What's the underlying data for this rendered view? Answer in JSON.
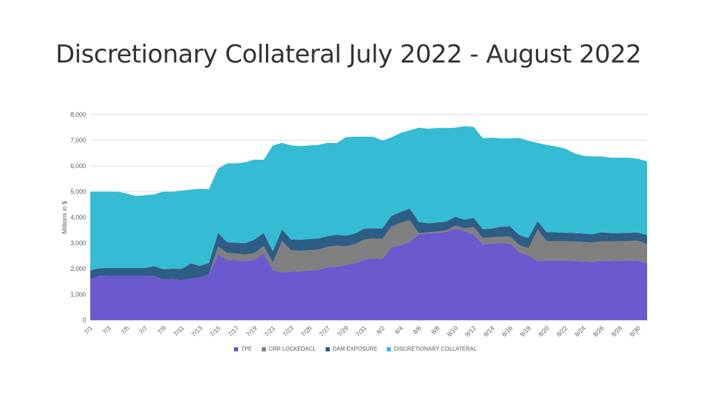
{
  "slide": {
    "title": "Discretionary Collateral July 2022 - August 2022"
  },
  "chart_data": {
    "type": "area",
    "stacked": true,
    "ylabel": "Millions in $",
    "xlabel": "",
    "ylim": [
      0,
      8000
    ],
    "yticks": [
      "0",
      "1,000",
      "2,000",
      "3,000",
      "4,000",
      "5,000",
      "6,000",
      "7,000",
      "8,000"
    ],
    "grid": true,
    "legend_position": "bottom",
    "x": [
      "7/1",
      "7/2",
      "7/3",
      "7/4",
      "7/5",
      "7/6",
      "7/7",
      "7/8",
      "7/9",
      "7/10",
      "7/11",
      "7/12",
      "7/13",
      "7/14",
      "7/15",
      "7/16",
      "7/17",
      "7/18",
      "7/19",
      "7/20",
      "7/21",
      "7/22",
      "7/23",
      "7/24",
      "7/25",
      "7/26",
      "7/27",
      "7/28",
      "7/29",
      "7/30",
      "7/31",
      "8/1",
      "8/2",
      "8/3",
      "8/4",
      "8/5",
      "8/6",
      "8/7",
      "8/8",
      "8/9",
      "8/10",
      "8/11",
      "8/12",
      "8/13",
      "8/14",
      "8/15",
      "8/16",
      "8/17",
      "8/18",
      "8/19",
      "8/20",
      "8/21",
      "8/22",
      "8/23",
      "8/24",
      "8/25",
      "8/26",
      "8/27",
      "8/28",
      "8/29",
      "8/30",
      "8/31"
    ],
    "xtick_labels": [
      "7/1",
      "",
      "7/3",
      "",
      "7/5",
      "",
      "7/7",
      "",
      "7/9",
      "",
      "7/11",
      "",
      "7/13",
      "",
      "7/15",
      "",
      "7/17",
      "",
      "7/19",
      "",
      "7/21",
      "",
      "7/23",
      "",
      "7/25",
      "",
      "7/27",
      "",
      "7/29",
      "",
      "7/31",
      "",
      "8/2",
      "",
      "8/4",
      "",
      "8/6",
      "",
      "8/8",
      "",
      "8/10",
      "",
      "8/12",
      "",
      "8/14",
      "",
      "8/16",
      "",
      "8/18",
      "",
      "8/20",
      "",
      "8/22",
      "",
      "8/24",
      "",
      "8/26",
      "",
      "8/28",
      "",
      "8/30",
      ""
    ],
    "series": [
      {
        "name": "TPE",
        "color": "#6a5acd",
        "values": [
          1600,
          1720,
          1730,
          1730,
          1730,
          1730,
          1730,
          1720,
          1580,
          1600,
          1560,
          1620,
          1660,
          1780,
          2560,
          2350,
          2330,
          2300,
          2350,
          2600,
          1960,
          1860,
          1890,
          1900,
          1930,
          1960,
          2060,
          2080,
          2150,
          2220,
          2350,
          2400,
          2380,
          2830,
          2920,
          3050,
          3350,
          3380,
          3400,
          3430,
          3560,
          3470,
          3320,
          2950,
          2980,
          2990,
          2980,
          2640,
          2520,
          2290,
          2320,
          2320,
          2320,
          2300,
          2290,
          2260,
          2320,
          2300,
          2320,
          2320,
          2310,
          2210
        ]
      },
      {
        "name": "CRR LOCKEDACL",
        "color": "#808080",
        "values": [
          0,
          0,
          0,
          0,
          0,
          0,
          0,
          0,
          0,
          0,
          0,
          0,
          0,
          0,
          310,
          260,
          260,
          250,
          260,
          290,
          280,
          1220,
          830,
          800,
          790,
          790,
          790,
          820,
          720,
          740,
          790,
          780,
          790,
          810,
          870,
          840,
          40,
          40,
          50,
          60,
          120,
          110,
          300,
          250,
          250,
          250,
          280,
          280,
          280,
          1230,
          750,
          750,
          750,
          760,
          750,
          760,
          750,
          760,
          760,
          760,
          780,
          760
        ]
      },
      {
        "name": "DAM EXPOSURE",
        "color": "#2e5d85",
        "values": [
          340,
          300,
          300,
          300,
          300,
          300,
          300,
          380,
          400,
          400,
          430,
          590,
          450,
          450,
          520,
          420,
          420,
          450,
          530,
          500,
          440,
          450,
          420,
          430,
          440,
          430,
          420,
          420,
          420,
          410,
          420,
          390,
          400,
          420,
          420,
          450,
          430,
          350,
          350,
          350,
          340,
          330,
          360,
          340,
          340,
          400,
          390,
          390,
          400,
          330,
          350,
          350,
          330,
          330,
          330,
          320,
          350,
          330,
          310,
          320,
          320,
          340
        ]
      },
      {
        "name": "DISCRETIONARY COLLATERAL",
        "color": "#35bcd4",
        "values": [
          3060,
          2980,
          2970,
          2970,
          2900,
          2800,
          2830,
          2800,
          3020,
          3000,
          3050,
          2870,
          3000,
          2870,
          2510,
          3070,
          3090,
          3150,
          3110,
          2850,
          4120,
          3370,
          3660,
          3640,
          3640,
          3640,
          3630,
          3570,
          3830,
          3770,
          3580,
          3570,
          3420,
          3050,
          3080,
          3050,
          3670,
          3680,
          3680,
          3640,
          3470,
          3640,
          3540,
          3540,
          3530,
          3430,
          3420,
          3780,
          3780,
          3050,
          3400,
          3340,
          3280,
          3110,
          3030,
          3030,
          2950,
          2930,
          2930,
          2920,
          2870,
          2870
        ]
      }
    ]
  }
}
